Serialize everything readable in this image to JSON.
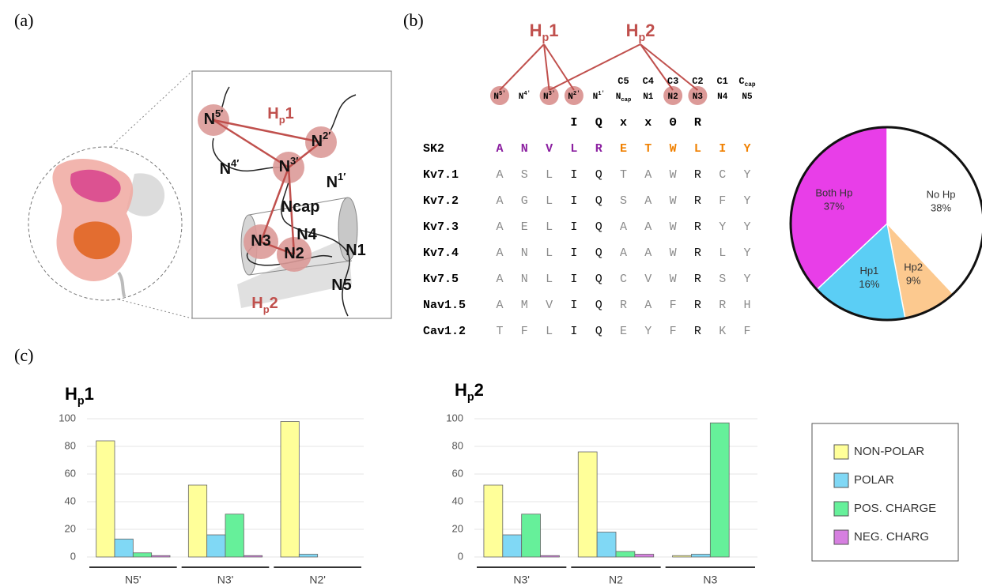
{
  "panel_labels": [
    "(a)",
    "(b)",
    "(c)"
  ],
  "diagram": {
    "labels": [
      {
        "parts": [
          {
            "t": "N"
          },
          {
            "t": "5′",
            "sup": true
          }
        ]
      },
      {
        "parts": [
          {
            "t": "H"
          },
          {
            "t": "p",
            "sub": true
          },
          {
            "t": "1"
          }
        ],
        "color": "#c0504d"
      },
      {
        "parts": [
          {
            "t": "N"
          },
          {
            "t": "2′",
            "sup": true
          }
        ]
      },
      {
        "parts": [
          {
            "t": "N"
          },
          {
            "t": "4′",
            "sup": true
          }
        ]
      },
      {
        "parts": [
          {
            "t": "N"
          },
          {
            "t": "3′",
            "sup": true
          }
        ]
      },
      {
        "parts": [
          {
            "t": "N"
          },
          {
            "t": "1′",
            "sup": true
          }
        ]
      },
      {
        "parts": [
          {
            "t": "Ncap"
          }
        ]
      },
      {
        "parts": [
          {
            "t": "N4"
          }
        ]
      },
      {
        "parts": [
          {
            "t": "N3"
          }
        ]
      },
      {
        "parts": [
          {
            "t": "N2"
          }
        ]
      },
      {
        "parts": [
          {
            "t": "N1"
          }
        ]
      },
      {
        "parts": [
          {
            "t": "H"
          },
          {
            "t": "p",
            "sub": true
          },
          {
            "t": "2"
          }
        ],
        "color": "#c0504d"
      },
      {
        "parts": [
          {
            "t": "N5"
          }
        ]
      }
    ]
  },
  "alignment": {
    "hp_labels": [
      {
        "parts": [
          {
            "t": "H"
          },
          {
            "t": "p",
            "sub": true
          },
          {
            "t": "1"
          }
        ],
        "links": [
          0,
          2,
          3
        ]
      },
      {
        "parts": [
          {
            "t": "H"
          },
          {
            "t": "p",
            "sub": true
          },
          {
            "t": "2"
          }
        ],
        "links": [
          2,
          7,
          8
        ]
      }
    ],
    "top_row": [
      null,
      null,
      null,
      null,
      null,
      [
        {
          "t": "C5"
        }
      ],
      [
        {
          "t": "C4"
        }
      ],
      [
        {
          "t": "C3"
        }
      ],
      [
        {
          "t": "C2"
        }
      ],
      [
        {
          "t": "C1"
        }
      ],
      [
        {
          "t": "C"
        },
        {
          "t": "cap",
          "sub": true
        }
      ]
    ],
    "bottom_row": [
      {
        "parts": [
          {
            "t": "N"
          },
          {
            "t": "5′",
            "sup": true
          }
        ],
        "circled": true
      },
      {
        "parts": [
          {
            "t": "N"
          },
          {
            "t": "4′",
            "sup": true
          }
        ]
      },
      {
        "parts": [
          {
            "t": "N"
          },
          {
            "t": "3′",
            "sup": true
          }
        ],
        "circled": true
      },
      {
        "parts": [
          {
            "t": "N"
          },
          {
            "t": "2′",
            "sup": true
          }
        ],
        "circled": true
      },
      {
        "parts": [
          {
            "t": "N"
          },
          {
            "t": "1′",
            "sup": true
          }
        ]
      },
      {
        "parts": [
          {
            "t": "N"
          },
          {
            "t": "cap",
            "sub": true
          }
        ]
      },
      {
        "parts": [
          {
            "t": "N1"
          }
        ]
      },
      {
        "parts": [
          {
            "t": "N2"
          }
        ],
        "circled": true
      },
      {
        "parts": [
          {
            "t": "N3"
          }
        ],
        "circled": true
      },
      {
        "parts": [
          {
            "t": "N4"
          }
        ]
      },
      {
        "parts": [
          {
            "t": "N5"
          }
        ]
      }
    ],
    "consensus": [
      null,
      null,
      null,
      "I",
      "Q",
      "x",
      "x",
      "Θ",
      "R",
      null,
      null
    ],
    "conserved_columns": [
      3,
      4,
      8
    ],
    "rows": [
      {
        "name": "SK2",
        "residues": [
          "A",
          "N",
          "V",
          "L",
          "R",
          "E",
          "T",
          "W",
          "L",
          "I",
          "Y"
        ],
        "colors": [
          "#8b1fa0",
          "#8b1fa0",
          "#8b1fa0",
          "#8b1fa0",
          "#8b1fa0",
          "#f08000",
          "#f08000",
          "#f08000",
          "#f08000",
          "#f08000",
          "#f08000"
        ]
      },
      {
        "name": "Kv7.1",
        "residues": [
          "A",
          "S",
          "L",
          "I",
          "Q",
          "T",
          "A",
          "W",
          "R",
          "C",
          "Y"
        ]
      },
      {
        "name": "Kv7.2",
        "residues": [
          "A",
          "G",
          "L",
          "I",
          "Q",
          "S",
          "A",
          "W",
          "R",
          "F",
          "Y"
        ]
      },
      {
        "name": "Kv7.3",
        "residues": [
          "A",
          "E",
          "L",
          "I",
          "Q",
          "A",
          "A",
          "W",
          "R",
          "Y",
          "Y"
        ]
      },
      {
        "name": "Kv7.4",
        "residues": [
          "A",
          "N",
          "L",
          "I",
          "Q",
          "A",
          "A",
          "W",
          "R",
          "L",
          "Y"
        ]
      },
      {
        "name": "Kv7.5",
        "residues": [
          "A",
          "N",
          "L",
          "I",
          "Q",
          "C",
          "V",
          "W",
          "R",
          "S",
          "Y"
        ]
      },
      {
        "name": "Nav1.5",
        "residues": [
          "A",
          "M",
          "V",
          "I",
          "Q",
          "R",
          "A",
          "F",
          "R",
          "R",
          "H"
        ]
      },
      {
        "name": "Cav1.2",
        "residues": [
          "T",
          "F",
          "L",
          "I",
          "Q",
          "E",
          "Y",
          "F",
          "R",
          "K",
          "F"
        ]
      }
    ]
  },
  "chart_data": [
    {
      "type": "pie",
      "categories": [
        "No Hp",
        "Hp2",
        "Hp1",
        "Both Hp"
      ],
      "values": [
        38,
        9,
        16,
        37
      ],
      "value_labels": [
        "38%",
        "9%",
        "16%",
        "37%"
      ],
      "colors": [
        "#ffffff",
        "#fcc98f",
        "#5bcef5",
        "#e83ee8"
      ]
    },
    {
      "type": "bar",
      "title_parts": [
        {
          "t": "H"
        },
        {
          "t": "p",
          "sub": true
        },
        {
          "t": "1"
        }
      ],
      "categories": [
        "N5'",
        "N3'",
        "N2'"
      ],
      "ylim": [
        0,
        100
      ],
      "yticks": [
        0,
        20,
        40,
        60,
        80,
        100
      ],
      "grid": true,
      "series": [
        {
          "name": "NON-POLAR",
          "color": "#ffff99",
          "values": [
            84,
            52,
            98
          ]
        },
        {
          "name": "POLAR",
          "color": "#80d8f5",
          "values": [
            13,
            16,
            2
          ]
        },
        {
          "name": "POS. CHARGE",
          "color": "#66f09a",
          "values": [
            3,
            31,
            0
          ]
        },
        {
          "name": "NEG. CHARG",
          "color": "#d67fe0",
          "values": [
            1,
            1,
            0
          ]
        }
      ]
    },
    {
      "type": "bar",
      "title_parts": [
        {
          "t": "H"
        },
        {
          "t": "p",
          "sub": true
        },
        {
          "t": "2"
        }
      ],
      "categories": [
        "N3'",
        "N2",
        "N3"
      ],
      "ylim": [
        0,
        100
      ],
      "yticks": [
        0,
        20,
        40,
        60,
        80,
        100
      ],
      "grid": true,
      "series": [
        {
          "name": "NON-POLAR",
          "color": "#ffff99",
          "values": [
            52,
            76,
            1
          ]
        },
        {
          "name": "POLAR",
          "color": "#80d8f5",
          "values": [
            16,
            18,
            2
          ]
        },
        {
          "name": "POS. CHARGE",
          "color": "#66f09a",
          "values": [
            31,
            4,
            97
          ]
        },
        {
          "name": "NEG. CHARG",
          "color": "#d67fe0",
          "values": [
            1,
            2,
            0
          ]
        }
      ]
    }
  ]
}
